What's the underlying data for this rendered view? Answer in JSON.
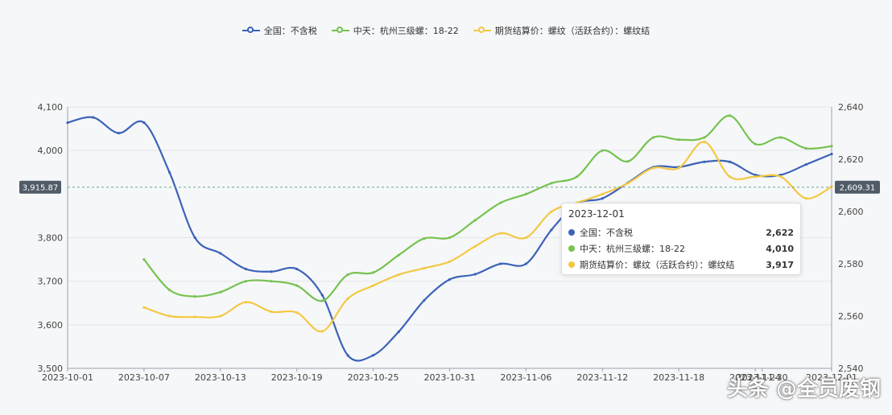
{
  "chart_data": {
    "type": "line",
    "title": "",
    "x": [
      "2023-10-01",
      "2023-10-03",
      "2023-10-05",
      "2023-10-07",
      "2023-10-09",
      "2023-10-11",
      "2023-10-13",
      "2023-10-15",
      "2023-10-17",
      "2023-10-19",
      "2023-10-21",
      "2023-10-23",
      "2023-10-25",
      "2023-10-27",
      "2023-10-29",
      "2023-10-31",
      "2023-11-02",
      "2023-11-04",
      "2023-11-06",
      "2023-11-08",
      "2023-11-10",
      "2023-11-12",
      "2023-11-14",
      "2023-11-16",
      "2023-11-18",
      "2023-11-20",
      "2023-11-22",
      "2023-11-24",
      "2023-11-26",
      "2023-11-28",
      "2023-12-01"
    ],
    "x_ticks": [
      "2023-10-01",
      "2023-10-07",
      "2023-10-13",
      "2023-10-19",
      "2023-10-25",
      "2023-10-31",
      "2023-11-06",
      "2023-11-12",
      "2023-11-18",
      "2023-11-24",
      "2023-11-30",
      "2023-12-01"
    ],
    "y_left": {
      "min": 3500,
      "max": 4100,
      "ticks": [
        3500,
        3600,
        3700,
        3800,
        4000,
        4100
      ],
      "tick_labels": [
        "3,500",
        "3,600",
        "3,700",
        "3,800",
        "4,000",
        "4,100"
      ]
    },
    "y_right": {
      "min": 2540,
      "max": 2640,
      "ticks": [
        2540,
        2560,
        2580,
        2600,
        2620,
        2640
      ],
      "tick_labels": [
        "2,540",
        "2,560",
        "2,580",
        "2,600",
        "2,620",
        "2,640"
      ]
    },
    "crosshair": {
      "left_label": "3,915.87",
      "right_label": "2,609.31",
      "left_value": 3915.87
    },
    "series": [
      {
        "name": "全国：不含税",
        "axis": "right",
        "color": "#3d63b8",
        "values": [
          2634,
          2636,
          2630,
          2634,
          2615,
          2590,
          2584,
          2578,
          2577,
          2578,
          2568,
          2545,
          2545,
          2554,
          2566,
          2574,
          2576,
          2580,
          2580,
          2593,
          2603,
          2605,
          2611,
          2617,
          2617,
          2619,
          2619,
          2614,
          2614,
          2618,
          2622
        ]
      },
      {
        "name": "中天：杭州三级螺：18-22",
        "axis": "left",
        "color": "#76c34f",
        "values": [
          null,
          null,
          null,
          3750,
          3680,
          3665,
          3675,
          3700,
          3700,
          3690,
          3655,
          3715,
          3720,
          3760,
          3798,
          3800,
          3840,
          3880,
          3900,
          3925,
          3940,
          4000,
          3975,
          4030,
          4025,
          4030,
          4080,
          4015,
          4030,
          4005,
          4010
        ]
      },
      {
        "name": "期货结算价：螺纹（活跃合约）：螺纹结",
        "axis": "left",
        "color": "#f4c842",
        "values": [
          null,
          null,
          null,
          3640,
          3620,
          3618,
          3620,
          3652,
          3630,
          3628,
          3585,
          3660,
          3690,
          3715,
          3730,
          3745,
          3780,
          3810,
          3800,
          3860,
          3880,
          3900,
          3925,
          3960,
          3960,
          4020,
          3940,
          3940,
          3940,
          3890,
          3917
        ]
      }
    ]
  },
  "legend": [
    {
      "label": "全国：不含税",
      "color": "#3d63b8"
    },
    {
      "label": "中天：杭州三级螺：18-22",
      "color": "#76c34f"
    },
    {
      "label": "期货结算价：螺纹（活跃合约）：螺纹结",
      "color": "#f4c842"
    }
  ],
  "tooltip": {
    "date": "2023-12-01",
    "rows": [
      {
        "label": "全国：不含税",
        "value": "2,622",
        "color": "#3d63b8"
      },
      {
        "label": "中天：杭州三级螺：18-22",
        "value": "4,010",
        "color": "#76c34f"
      },
      {
        "label": "期货结算价：螺纹（活跃合约）：螺纹结",
        "value": "3,917",
        "color": "#f4c842"
      }
    ]
  },
  "watermark": "头条 @全员废钢"
}
